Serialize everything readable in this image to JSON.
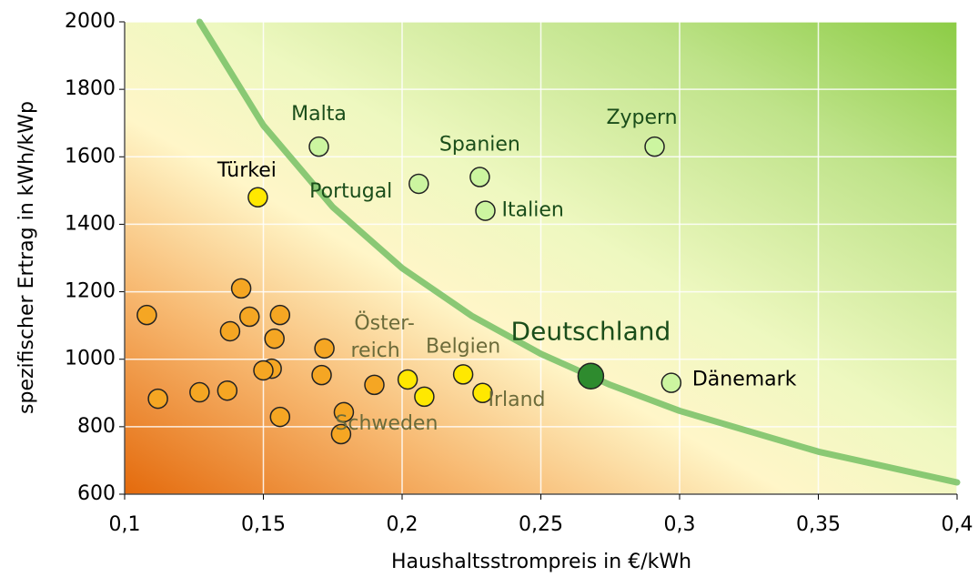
{
  "chart_data": {
    "type": "scatter",
    "xlabel": "Haushaltsstrompreis in €/kWh",
    "ylabel": "spezifischer Ertrag in kWh/kWp",
    "xlim": [
      0.1,
      0.4
    ],
    "ylim": [
      600,
      2000
    ],
    "xticks": [
      {
        "value": 0.1,
        "label": "0,1"
      },
      {
        "value": 0.15,
        "label": "0,15"
      },
      {
        "value": 0.2,
        "label": "0,2"
      },
      {
        "value": 0.25,
        "label": "0,25"
      },
      {
        "value": 0.3,
        "label": "0,3"
      },
      {
        "value": 0.35,
        "label": "0,35"
      },
      {
        "value": 0.4,
        "label": "0,4"
      }
    ],
    "yticks": [
      600,
      800,
      1000,
      1200,
      1400,
      1600,
      1800,
      2000
    ],
    "grid": true,
    "points": {
      "x": [
        0.17,
        0.291,
        0.228,
        0.206,
        0.23,
        0.148,
        0.268,
        0.297,
        0.229,
        0.222,
        0.208,
        0.202,
        0.19,
        0.172,
        0.171,
        0.179,
        0.178,
        0.156,
        0.154,
        0.153,
        0.15,
        0.156,
        0.145,
        0.142,
        0.138,
        0.137,
        0.127,
        0.112,
        0.108
      ],
      "values": [
        1630,
        1630,
        1540,
        1520,
        1440,
        1480,
        950,
        930,
        900,
        955,
        889,
        940,
        924,
        1032,
        953,
        843,
        778,
        1131,
        1061,
        972,
        967,
        829,
        1126,
        1210,
        1083,
        907,
        902,
        883,
        1131
      ],
      "colors": [
        "#ccf5a0",
        "#ccf5a0",
        "#ccf5a0",
        "#ccf5a0",
        "#ccf5a0",
        "#ffe800",
        "#2e8b2e",
        "#ccf5a0",
        "#ffe800",
        "#ffe800",
        "#ffe800",
        "#ffe800",
        "#f5a623",
        "#f5a623",
        "#f5a623",
        "#f5a623",
        "#f5a623",
        "#f5a623",
        "#f5a623",
        "#f5a623",
        "#f5a623",
        "#f5a623",
        "#f5a623",
        "#f5a623",
        "#f5a623",
        "#f5a623",
        "#f5a623",
        "#f5a623",
        "#f5a623"
      ]
    },
    "annotations": [
      "Malta",
      "Zypern",
      "Spanien",
      "Portugal",
      "Italien",
      "Türkei",
      "Deutschland",
      "Dänemark",
      "Irland",
      "Belgien",
      "Schweden",
      "Öster-",
      "reich"
    ],
    "curve": {
      "color": "#7dc36a",
      "x": [
        0.127,
        0.15,
        0.175,
        0.2,
        0.225,
        0.25,
        0.275,
        0.3,
        0.35,
        0.4
      ],
      "values": [
        2000,
        1693,
        1451,
        1270,
        1129,
        1016,
        924,
        847,
        726,
        635
      ]
    }
  }
}
